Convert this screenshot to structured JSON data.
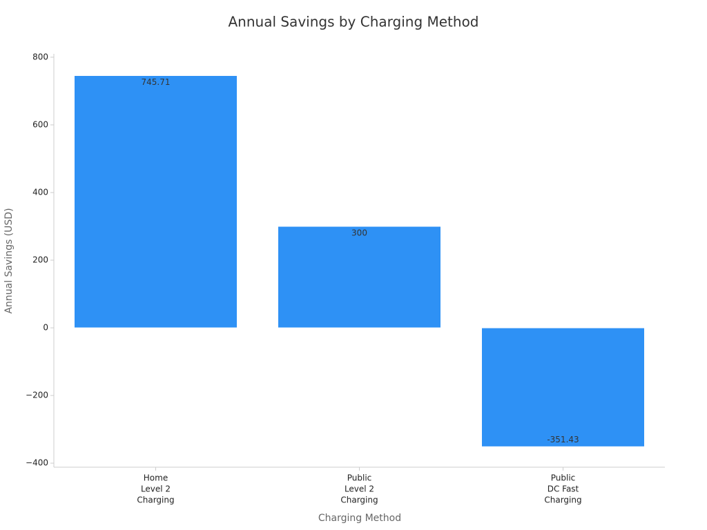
{
  "chart_data": {
    "type": "bar",
    "title": "Annual Savings by Charging Method",
    "x_label": "Charging Method",
    "y_label": "Annual Savings (USD)",
    "categories": [
      [
        "Home",
        "Level 2",
        "Charging"
      ],
      [
        "Public",
        "Level 2",
        "Charging"
      ],
      [
        "Public",
        "DC Fast",
        "Charging"
      ]
    ],
    "values": [
      745.71,
      300,
      -351.43
    ],
    "color": "#2e91f5",
    "ylim": [
      -412,
      810
    ],
    "yticks": [
      {
        "value": -400,
        "label": "−400"
      },
      {
        "value": -200,
        "label": "−200"
      },
      0,
      200,
      400,
      600,
      800
    ]
  }
}
